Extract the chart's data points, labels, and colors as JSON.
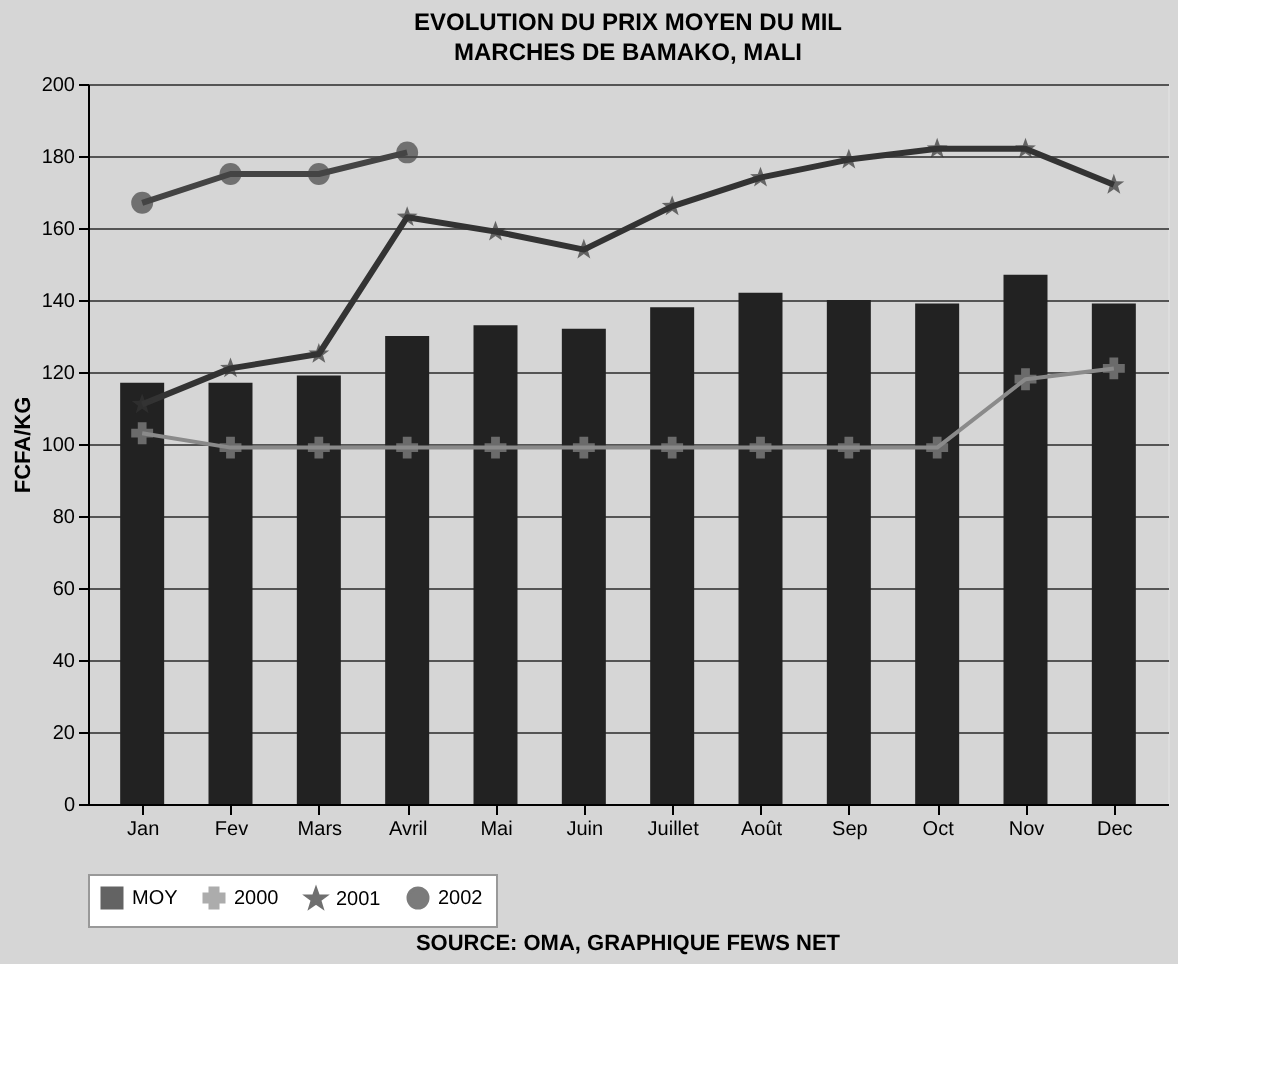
{
  "chart_data": {
    "type": "bar",
    "title": "EVOLUTION DU PRIX MOYEN DU MIL",
    "subtitle": "MARCHES DE BAMAKO, MALI",
    "ylabel": "FCFA/KG",
    "categories": [
      "Jan",
      "Fev",
      "Mars",
      "Avril",
      "Mai",
      "Juin",
      "Juillet",
      "Août",
      "Sep",
      "Oct",
      "Nov",
      "Dec"
    ],
    "series": [
      {
        "name": "MOY",
        "color": "#222222",
        "values": [
          117,
          117,
          119,
          130,
          133,
          132,
          138,
          142,
          140,
          139,
          147,
          139
        ]
      },
      {
        "name": "2000",
        "type": "line",
        "color": "#8a8a8a",
        "marker": "cross",
        "values": [
          103,
          99,
          99,
          99,
          99,
          99,
          99,
          99,
          99,
          99,
          118,
          121
        ]
      },
      {
        "name": "2001",
        "type": "line",
        "color": "#333333",
        "marker": "star",
        "values": [
          111,
          121,
          125,
          163,
          159,
          154,
          166,
          174,
          179,
          182,
          182,
          172
        ]
      },
      {
        "name": "2002",
        "type": "line",
        "color": "#444444",
        "marker": "circle",
        "values": [
          167,
          175,
          175,
          181,
          null,
          null,
          null,
          null,
          null,
          null,
          null,
          null
        ]
      }
    ],
    "ylim": [
      0,
      200
    ],
    "yticks": [
      0,
      20,
      40,
      60,
      80,
      100,
      120,
      140,
      160,
      180,
      200
    ],
    "grid": "y",
    "legend": "bottom",
    "annotations": [
      "SOURCE: OMA, GRAPHIQUE FEWS NET"
    ]
  }
}
